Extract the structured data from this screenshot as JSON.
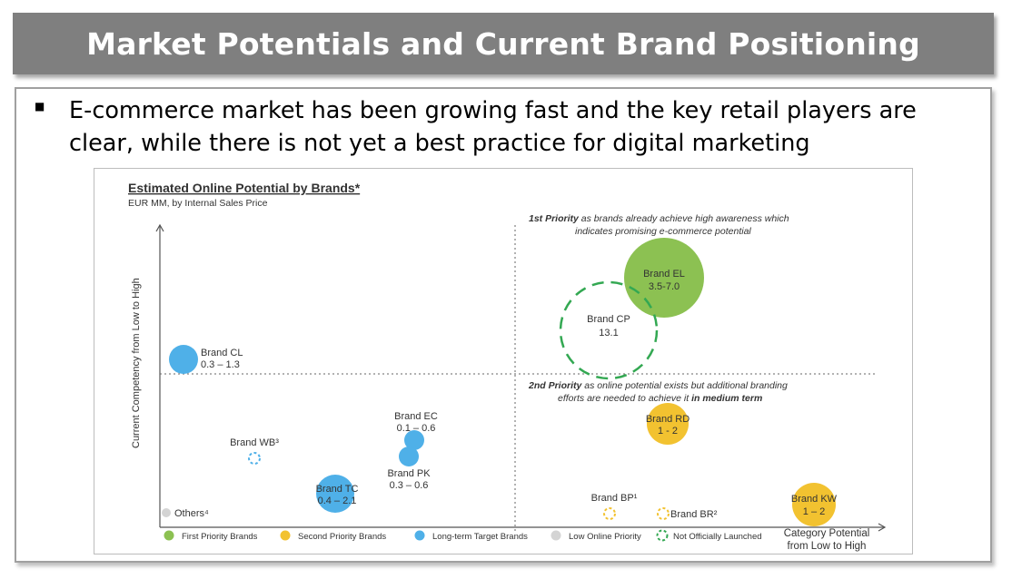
{
  "header": {
    "title": "Market Potentials and Current Brand Positioning"
  },
  "bullet": {
    "text": "E-commerce market has been growing fast and the key retail players are clear, while there is not yet a best practice for digital marketing"
  },
  "chart_data": {
    "type": "scatter",
    "title": "Estimated Online Potential by Brands*",
    "subtitle": "EUR MM, by Internal Sales Price",
    "xlabel_line1": "Category Potential",
    "xlabel_line2": "from Low to High",
    "ylabel": "Current Competency from Low to High",
    "quadrant_top_right_lead": "1st Priority",
    "quadrant_top_right_line1": "as brands already achieve high awareness which",
    "quadrant_top_right_line2": "indicates promising e-commerce potential",
    "quadrant_bottom_right_lead": "2nd Priority",
    "quadrant_bottom_right_line1": "as online potential exists but additional branding",
    "quadrant_bottom_right_line2_a": "efforts are needed to achieve it ",
    "quadrant_bottom_right_line2_b": "in medium term",
    "colors": {
      "first": "#8cc152",
      "second": "#f2c230",
      "longterm": "#4fb0e8",
      "low": "#d4d4d4",
      "not_launched": "#33a852"
    },
    "points": [
      {
        "name": "Brand EL",
        "value": "3.5-7.0",
        "category": "first"
      },
      {
        "name": "Brand CP",
        "value": "13.1",
        "category": "not_launched"
      },
      {
        "name": "Brand CL",
        "value": "0.3 – 1.3",
        "category": "longterm"
      },
      {
        "name": "Brand EC",
        "value": "0.1 – 0.6",
        "category": "longterm"
      },
      {
        "name": "Brand PK",
        "value": "0.3 – 0.6",
        "category": "longterm"
      },
      {
        "name": "Brand TC",
        "value": "0.4 – 2.1",
        "category": "longterm"
      },
      {
        "name": "Brand WB³",
        "value": "",
        "category": "not_launched_longterm"
      },
      {
        "name": "Brand RD",
        "value": "1 - 2",
        "category": "second"
      },
      {
        "name": "Brand KW",
        "value": "1 – 2",
        "category": "second"
      },
      {
        "name": "Brand BP¹",
        "value": "",
        "category": "not_launched_second"
      },
      {
        "name": "Brand BR²",
        "value": "",
        "category": "not_launched_second"
      },
      {
        "name": "Others⁴",
        "value": "",
        "category": "low"
      }
    ],
    "legend": [
      {
        "label": "First Priority Brands",
        "kind": "first"
      },
      {
        "label": "Second Priority Brands",
        "kind": "second"
      },
      {
        "label": "Long-term Target Brands",
        "kind": "longterm"
      },
      {
        "label": "Low Online Priority",
        "kind": "low"
      },
      {
        "label": "Not Officially Launched",
        "kind": "not_launched"
      }
    ]
  }
}
